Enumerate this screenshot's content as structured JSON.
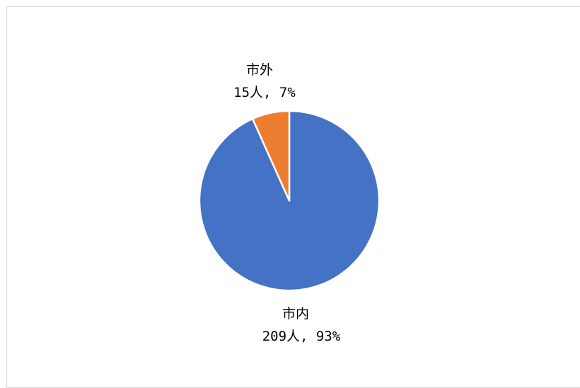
{
  "chart_data": {
    "type": "pie",
    "start_angle_deg": 0,
    "direction": "clockwise",
    "slices": [
      {
        "name": "市内",
        "count": 209,
        "unit": "人",
        "percent": 93,
        "color": "#4472C4",
        "label_line1": "市内",
        "label_line2": "209人, 93%"
      },
      {
        "name": "市外",
        "count": 15,
        "unit": "人",
        "percent": 7,
        "color": "#ED7D31",
        "label_line1": "市外",
        "label_line2": "15人, 7%"
      }
    ],
    "legend": "none",
    "slice_border_color": "#ffffff"
  }
}
